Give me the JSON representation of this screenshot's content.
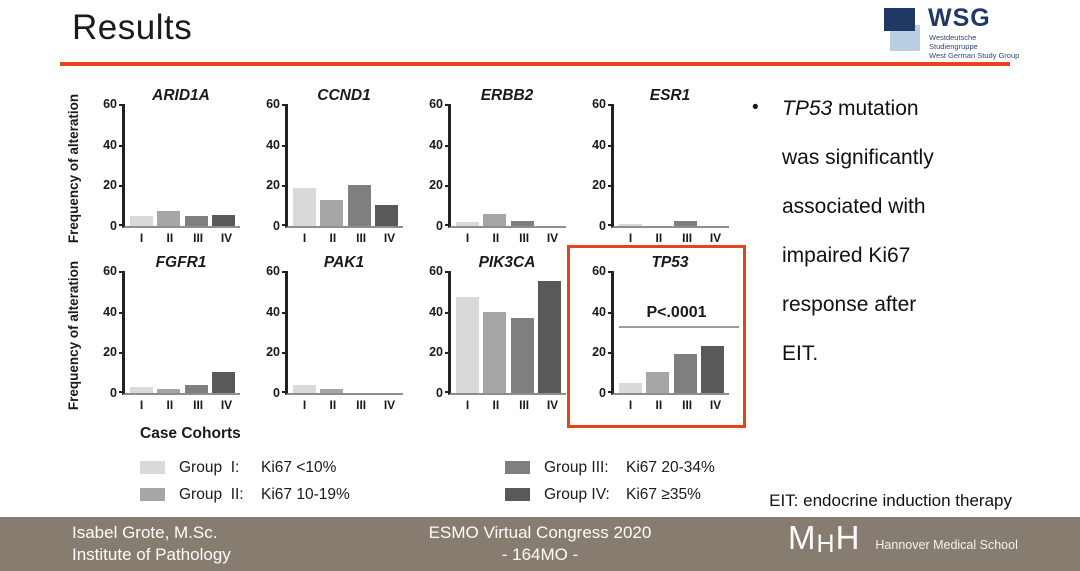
{
  "slide": {
    "title": "Results",
    "accent_color": "#e8431c"
  },
  "logos": {
    "wsg": {
      "acronym": "WSG",
      "caption_line1": "Westdeutsche Studiengruppe",
      "caption_line2": "West German Study Group",
      "navy": "#1f3864",
      "light_blue": "#b9cfe2"
    },
    "mhh": {
      "letter_m": "M",
      "letter_h_small": "H",
      "letter_h": "H",
      "caption": "Hannover Medical School"
    }
  },
  "chart_data": {
    "type": "bar",
    "layout": "small-multiples-2x4",
    "categories": [
      "I",
      "II",
      "III",
      "IV"
    ],
    "yticks": [
      0,
      20,
      40,
      60
    ],
    "ylim": [
      0,
      60
    ],
    "ylabel": "Frequency of alteration",
    "grid": false,
    "group_colors": [
      "#d9d9d9",
      "#a6a6a6",
      "#7f7f7f",
      "#595959"
    ],
    "charts": [
      {
        "title": "ARID1A",
        "values": [
          5,
          7.5,
          5,
          5.5
        ]
      },
      {
        "title": "CCND1",
        "values": [
          18.5,
          13,
          20,
          10.5
        ]
      },
      {
        "title": "ERBB2",
        "values": [
          2,
          6,
          2.5,
          0
        ]
      },
      {
        "title": "ESR1",
        "values": [
          1,
          0,
          2.5,
          0
        ]
      },
      {
        "title": "FGFR1",
        "values": [
          3,
          2,
          4,
          10.5
        ]
      },
      {
        "title": "PAK1",
        "values": [
          4,
          2,
          0,
          0
        ]
      },
      {
        "title": "PIK3CA",
        "values": [
          47,
          40,
          37,
          55
        ]
      },
      {
        "title": "TP53",
        "values": [
          5,
          10.5,
          19,
          23
        ],
        "highlighted": true,
        "annotation": {
          "label": "P<.0001",
          "line_y": 32
        }
      }
    ]
  },
  "legend": {
    "title": "Case Cohorts",
    "entries": [
      {
        "label": "Group  I:",
        "value": "Ki67 <10%",
        "color": "#d9d9d9"
      },
      {
        "label": "Group  II:",
        "value": "Ki67 10-19%",
        "color": "#a6a6a6"
      },
      {
        "label": "Group III:",
        "value": "Ki67 20-34%",
        "color": "#7f7f7f"
      },
      {
        "label": "Group IV:",
        "value": "Ki67 ≥35%",
        "color": "#595959"
      }
    ]
  },
  "bullet": {
    "marker": "•",
    "lines": [
      {
        "italic": "TP53",
        "text": " mutation"
      },
      {
        "text": "was significantly"
      },
      {
        "text": "associated with"
      },
      {
        "text": "impaired Ki67"
      },
      {
        "text": "response after"
      },
      {
        "text": "EIT."
      }
    ]
  },
  "note": "EIT: endocrine induction therapy",
  "footer": {
    "bg": "#867d70",
    "left_line1": "Isabel Grote, M.Sc.",
    "left_line2": "Institute of Pathology",
    "center_line1": "ESMO Virtual Congress 2020",
    "center_line2": "- 164MO -"
  }
}
